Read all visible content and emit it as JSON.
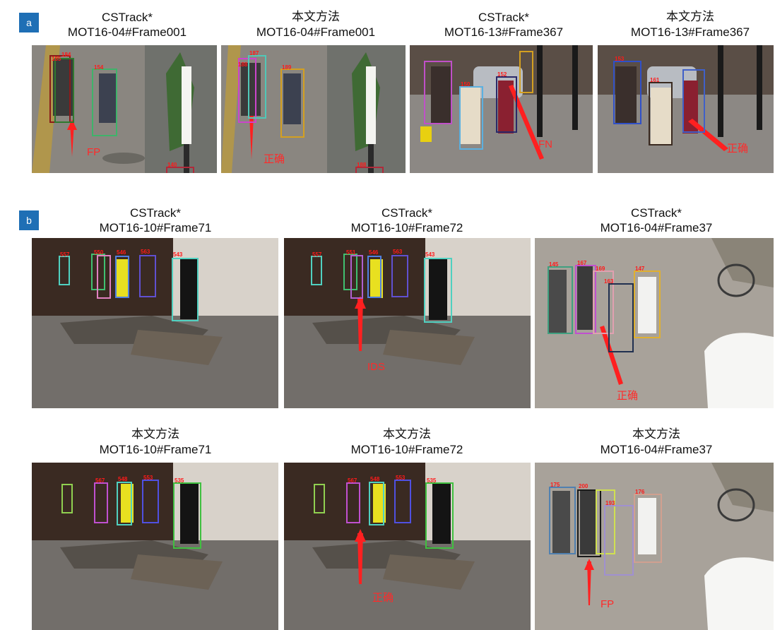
{
  "panel_a": {
    "label": "a",
    "captions": [
      {
        "method": "CSTrack*",
        "frame": "MOT16-04#Frame001"
      },
      {
        "method": "本文方法",
        "frame": "MOT16-04#Frame001"
      },
      {
        "method": "CSTrack*",
        "frame": "MOT16-13#Frame367"
      },
      {
        "method": "本文方法",
        "frame": "MOT16-13#Frame367"
      }
    ],
    "annotations": [
      "FP",
      "正确",
      "FN",
      "正确"
    ],
    "ids": {
      "a1": [
        "185",
        "184",
        "154",
        "140"
      ],
      "a2": [
        "187",
        "188",
        "189",
        "188"
      ],
      "a3": [
        "150",
        "152"
      ],
      "a4": [
        "153",
        "161"
      ]
    }
  },
  "panel_b": {
    "label": "b",
    "captions_top": [
      {
        "method": "CSTrack*",
        "frame": "MOT16-10#Frame71"
      },
      {
        "method": "CSTrack*",
        "frame": "MOT16-10#Frame72"
      },
      {
        "method": "CSTrack*",
        "frame": "MOT16-04#Frame37"
      }
    ],
    "captions_bottom": [
      {
        "method": "本文方法",
        "frame": "MOT16-10#Frame71"
      },
      {
        "method": "本文方法",
        "frame": "MOT16-10#Frame72"
      },
      {
        "method": "本文方法",
        "frame": "MOT16-04#Frame37"
      }
    ],
    "annotations_top": [
      "IDS",
      "正确"
    ],
    "annotations_bottom": [
      "正确",
      "FP"
    ],
    "ids": {
      "b1": [
        "557",
        "550",
        "546",
        "563",
        "543"
      ],
      "b2": [
        "557",
        "551",
        "546",
        "563",
        "543"
      ],
      "b3": [
        "145",
        "167",
        "169",
        "147",
        "163"
      ],
      "b4": [
        "567",
        "548",
        "553",
        "535"
      ],
      "b5": [
        "567",
        "548",
        "553",
        "535"
      ],
      "b6": [
        "175",
        "200",
        "176",
        "193"
      ]
    }
  },
  "colors": {
    "badge": "#1f6fb5",
    "annotation": "#ff2a2a"
  }
}
